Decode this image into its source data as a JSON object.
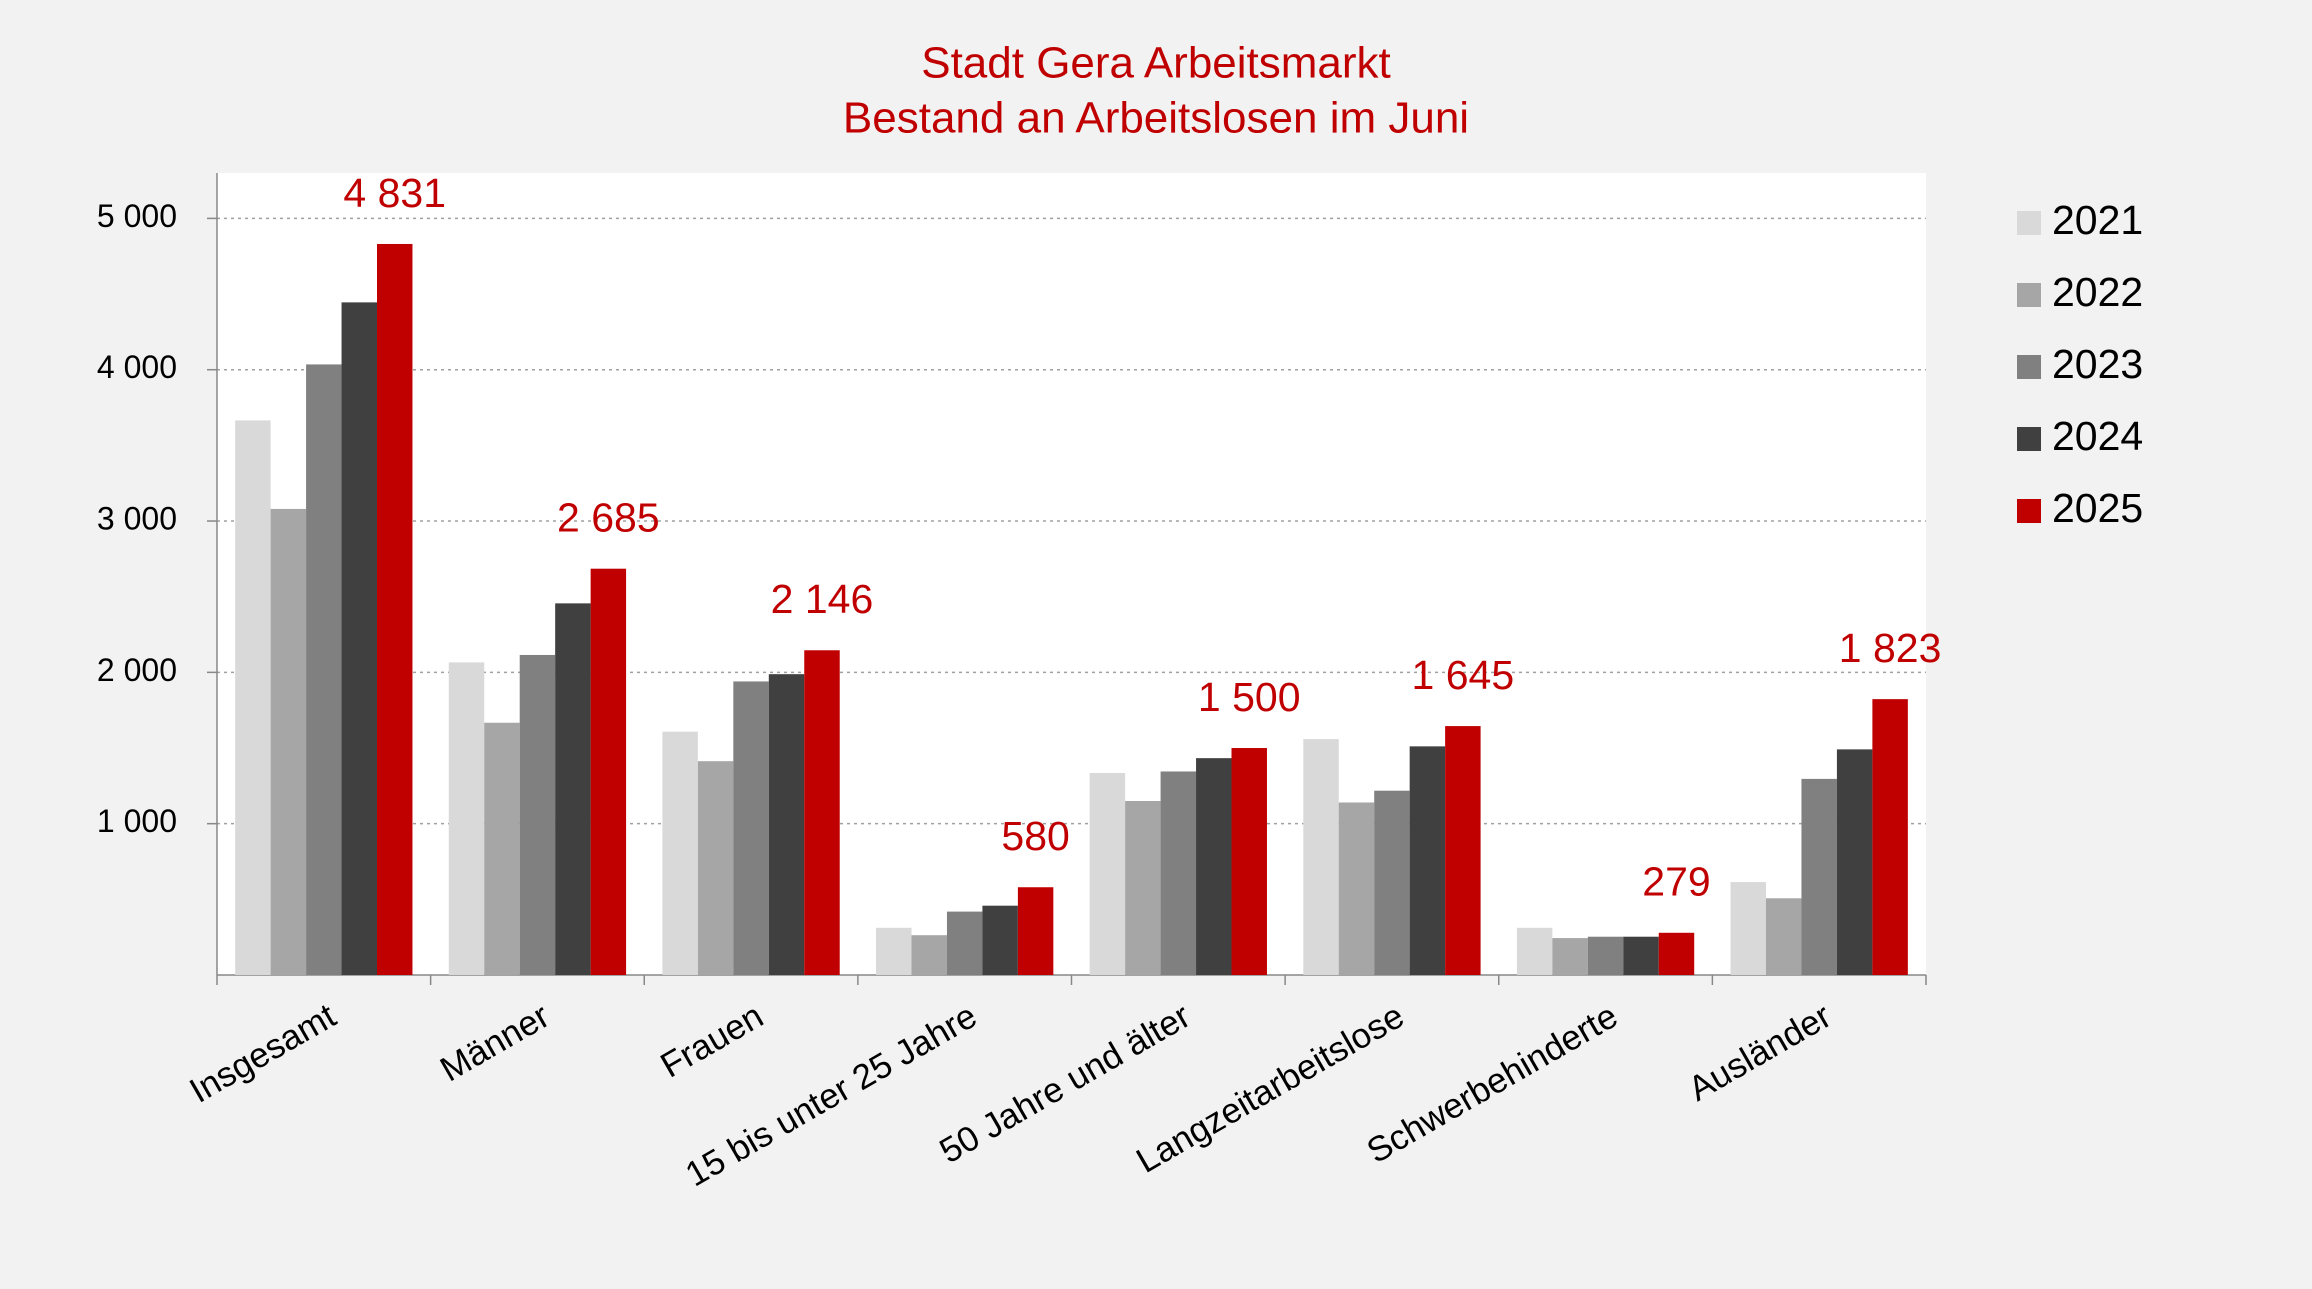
{
  "chart_data": {
    "type": "bar",
    "title": "Stadt Gera Arbeitsmarkt",
    "subtitle": "Bestand an Arbeitslosen im Juni",
    "categories": [
      "Insgesamt",
      "Männer",
      "Frauen",
      "15 bis unter 25 Jahre",
      "50 Jahre und älter",
      "Langzeitarbeitslose",
      "Schwerbehinderte",
      "Ausländer"
    ],
    "series": [
      {
        "name": "2021",
        "color": "#d9d9d9",
        "values": [
          3665,
          2066,
          1608,
          312,
          1335,
          1559,
          312,
          614
        ]
      },
      {
        "name": "2022",
        "color": "#a6a6a6",
        "values": [
          3080,
          1667,
          1413,
          263,
          1150,
          1140,
          244,
          507
        ]
      },
      {
        "name": "2023",
        "color": "#808080",
        "values": [
          4035,
          2115,
          1940,
          419,
          1345,
          1218,
          253,
          1296
        ]
      },
      {
        "name": "2024",
        "color": "#404040",
        "values": [
          4445,
          2456,
          1988,
          458,
          1433,
          1511,
          253,
          1491
        ]
      },
      {
        "name": "2025",
        "color": "#c00000",
        "values": [
          4831,
          2685,
          2146,
          580,
          1500,
          1645,
          279,
          1823
        ],
        "value_labels": [
          "4 831",
          "2 685",
          "2 146",
          "580",
          "1 500",
          "1 645",
          "279",
          "1 823"
        ]
      }
    ],
    "ylim": [
      0,
      5300
    ],
    "yticks": [
      {
        "value": 1000,
        "label": "1 000"
      },
      {
        "value": 2000,
        "label": "2 000"
      },
      {
        "value": 3000,
        "label": "3 000"
      },
      {
        "value": 4000,
        "label": "4 000"
      },
      {
        "value": 5000,
        "label": "5 000"
      }
    ],
    "grid": true,
    "legend": "right"
  }
}
